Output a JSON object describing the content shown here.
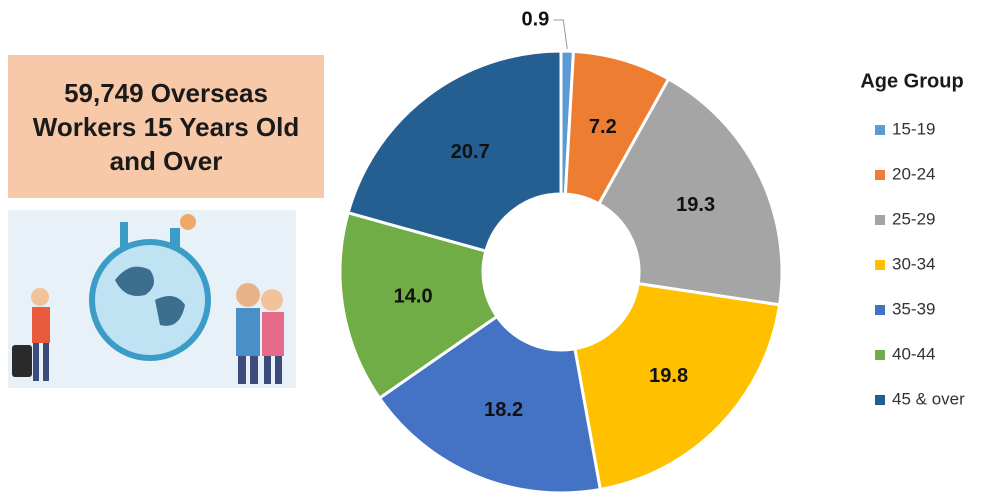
{
  "chart_data": {
    "type": "donut",
    "title": "59,749 Overseas Workers 15 Years Old and Over",
    "legend_title": "Age Group",
    "categories": [
      "15-19",
      "20-24",
      "25-29",
      "30-34",
      "35-39",
      "40-44",
      "45 & over"
    ],
    "values": [
      0.9,
      7.2,
      19.3,
      19.8,
      18.2,
      14.0,
      20.7
    ],
    "value_labels": [
      "0.9",
      "7.2",
      "19.3",
      "19.8",
      "18.2",
      "14.0",
      "20.7"
    ],
    "colors": [
      "#5b9bd5",
      "#ed7d31",
      "#a5a5a5",
      "#ffc000",
      "#4472c4",
      "#70ad47",
      "#255e91"
    ],
    "legend_position": "right"
  }
}
